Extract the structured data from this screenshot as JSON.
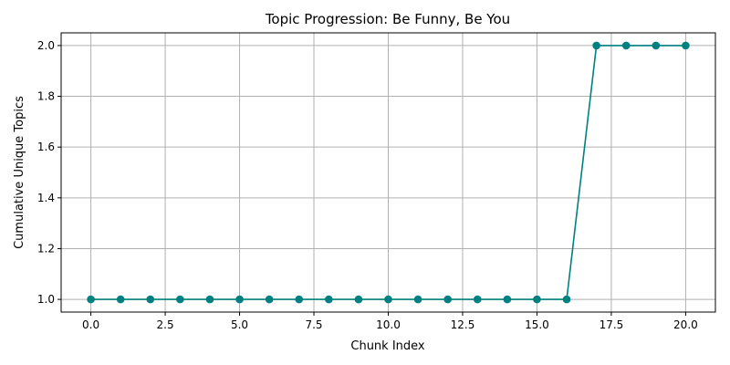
{
  "chart_data": {
    "type": "line",
    "title": "Topic Progression: Be Funny, Be You",
    "xlabel": "Chunk Index",
    "ylabel": "Cumulative Unique Topics",
    "xlim": [
      -1.0,
      21.0
    ],
    "ylim": [
      0.95,
      2.05
    ],
    "xticks": [
      0.0,
      2.5,
      5.0,
      7.5,
      10.0,
      12.5,
      15.0,
      17.5,
      20.0
    ],
    "xtick_labels": [
      "0.0",
      "2.5",
      "5.0",
      "7.5",
      "10.0",
      "12.5",
      "15.0",
      "17.5",
      "20.0"
    ],
    "yticks": [
      1.0,
      1.2,
      1.4,
      1.6,
      1.8,
      2.0
    ],
    "ytick_labels": [
      "1.0",
      "1.2",
      "1.4",
      "1.6",
      "1.8",
      "2.0"
    ],
    "grid": true,
    "marker": "circle",
    "color": "#008080",
    "series": [
      {
        "x": [
          0,
          1,
          2,
          3,
          4,
          5,
          6,
          7,
          8,
          9,
          10,
          11,
          12,
          13,
          14,
          15,
          16,
          17,
          18,
          19,
          20
        ],
        "values": [
          1,
          1,
          1,
          1,
          1,
          1,
          1,
          1,
          1,
          1,
          1,
          1,
          1,
          1,
          1,
          1,
          1,
          2,
          2,
          2,
          2
        ]
      }
    ]
  }
}
